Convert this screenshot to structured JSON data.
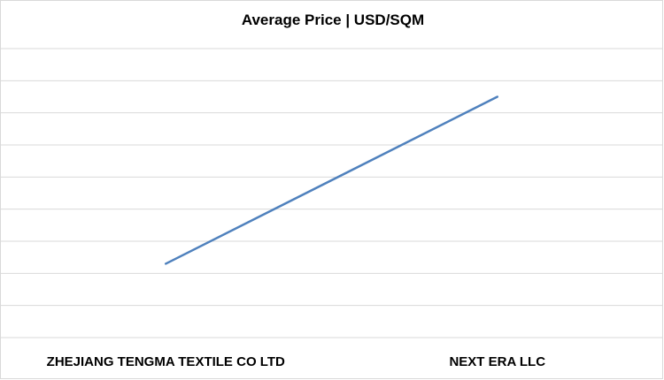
{
  "chart_data": {
    "type": "line",
    "title": "Average Price | USD/SQM",
    "categories": [
      "ZHEJIANG TENGMA TEXTILE CO LTD",
      "NEXT ERA LLC"
    ],
    "series": [
      {
        "values": [
          2.3,
          7.5
        ]
      }
    ],
    "ylim": [
      0,
      9
    ],
    "grid": true,
    "line_color": "#4f81bd",
    "grid_color": "#d9d9d9"
  }
}
